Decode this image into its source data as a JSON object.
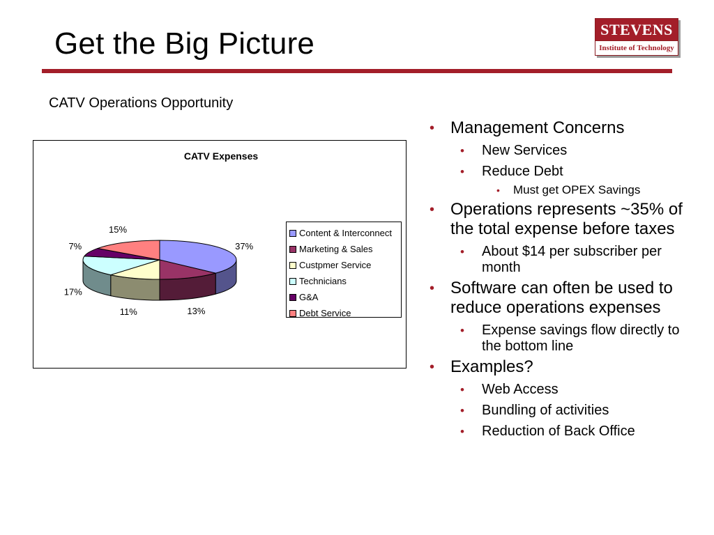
{
  "slide": {
    "title": "Get the Big Picture",
    "chart_heading": "CATV Operations Opportunity",
    "accent_color": "#a31e29"
  },
  "logo": {
    "name": "STEVENS",
    "subtitle": "Institute of Technology"
  },
  "bullets": [
    {
      "level": 1,
      "text": "Management Concerns"
    },
    {
      "level": 2,
      "text": "New Services"
    },
    {
      "level": 2,
      "text": "Reduce Debt"
    },
    {
      "level": 3,
      "text": "Must get OPEX Savings"
    },
    {
      "level": 1,
      "text": "Operations represents ~35% of the total expense before taxes"
    },
    {
      "level": 2,
      "text": "About $14 per subscriber per month"
    },
    {
      "level": 1,
      "text": "Software can often be used to reduce operations expenses"
    },
    {
      "level": 2,
      "text": "Expense savings flow directly to the bottom line"
    },
    {
      "level": 1,
      "text": "Examples?"
    },
    {
      "level": 2,
      "text": "Web Access"
    },
    {
      "level": 2,
      "text": "Bundling of activities"
    },
    {
      "level": 2,
      "text": "Reduction of Back Office"
    }
  ],
  "chart_data": {
    "type": "pie",
    "title": "CATV Expenses",
    "categories": [
      "Content & Interconnect",
      "Marketing & Sales",
      "Custpmer Service",
      "Technicians",
      "G&A",
      "Debt Service"
    ],
    "values": [
      37,
      13,
      11,
      17,
      7,
      15
    ],
    "value_labels": [
      "37%",
      "13%",
      "11%",
      "17%",
      "7%",
      "15%"
    ],
    "colors": [
      "#9999ff",
      "#993366",
      "#ffffcc",
      "#ccffff",
      "#660066",
      "#ff8080"
    ],
    "legend_position": "right",
    "style": "3d"
  }
}
